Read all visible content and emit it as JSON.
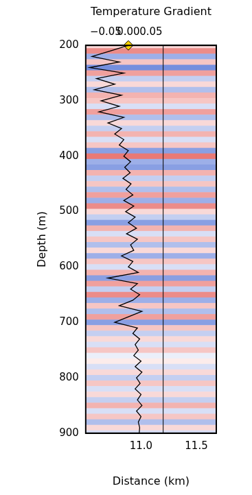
{
  "chart_data": {
    "type": "line",
    "x2_label": "Temperature Gradient",
    "x_label": "Distance (km)",
    "y_label": "Depth (m)",
    "xlim": [
      10.5,
      11.68
    ],
    "xticks": [
      {
        "value": 11.0,
        "label": "11.0"
      },
      {
        "value": 11.5,
        "label": "11.5"
      }
    ],
    "x2lim": [
      -0.094,
      0.194
    ],
    "x2ticks": [
      {
        "value": -0.05,
        "label": "−0.05"
      },
      {
        "value": 0.0,
        "label": "0.00"
      },
      {
        "value": 0.05,
        "label": "0.05"
      }
    ],
    "ylim": [
      200,
      900
    ],
    "yticks": [
      200,
      300,
      400,
      500,
      600,
      700,
      800,
      900
    ],
    "grid": false,
    "image_xlim": [
      10.5,
      11.2
    ],
    "synthetic_xlim": [
      11.2,
      11.68
    ],
    "reflectivity": {
      "depth": [
        200,
        210,
        220,
        230,
        240,
        250,
        260,
        270,
        280,
        290,
        300,
        310,
        320,
        330,
        340,
        350,
        360,
        370,
        380,
        390,
        400,
        410,
        420,
        430,
        440,
        450,
        460,
        470,
        480,
        490,
        500,
        510,
        520,
        530,
        540,
        550,
        560,
        570,
        580,
        590,
        600,
        610,
        620,
        630,
        640,
        650,
        660,
        670,
        680,
        690,
        700,
        710,
        720,
        730,
        740,
        750,
        760,
        770,
        780,
        790,
        800,
        810,
        820,
        830,
        840,
        850,
        860,
        870,
        880,
        890,
        900
      ],
      "amplitude": [
        0.2,
        0.6,
        -0.5,
        0.3,
        -0.7,
        0.5,
        -0.3,
        0.2,
        -0.4,
        0.4,
        0.3,
        -0.2,
        0.5,
        -0.4,
        0.2,
        -0.3,
        0.4,
        -0.2,
        0.3,
        -0.6,
        0.7,
        -0.5,
        -0.6,
        0.4,
        -0.3,
        0.3,
        -0.4,
        0.5,
        -0.5,
        0.6,
        0.2,
        -0.3,
        -0.6,
        0.4,
        -0.2,
        0.3,
        -0.4,
        0.2,
        -0.5,
        0.3,
        -0.2,
        0.4,
        -0.6,
        0.5,
        -0.3,
        0.6,
        -0.5,
        0.3,
        -0.4,
        0.5,
        -0.6,
        0.3,
        -0.3,
        0.2,
        -0.2,
        0.3,
        -0.1,
        0.1,
        -0.2,
        0.2,
        -0.3,
        0.3,
        -0.2,
        0.2,
        -0.3,
        0.4,
        -0.2,
        0.3,
        -0.4,
        0.2,
        -0.2
      ],
      "color_range": [
        -1,
        1
      ],
      "colors": [
        "#3a5fd0",
        "#ffffff",
        "#e0403a"
      ]
    },
    "gradient_curve": {
      "axis": "x2",
      "color": "#000000",
      "depth": [
        200,
        210,
        220,
        230,
        240,
        250,
        260,
        270,
        280,
        290,
        300,
        310,
        320,
        330,
        340,
        350,
        360,
        370,
        380,
        390,
        400,
        410,
        420,
        430,
        440,
        450,
        460,
        470,
        480,
        490,
        500,
        510,
        520,
        530,
        540,
        550,
        560,
        570,
        580,
        590,
        600,
        610,
        620,
        630,
        640,
        650,
        660,
        670,
        680,
        690,
        700,
        710,
        720,
        730,
        740,
        750,
        760,
        770,
        780,
        790,
        800,
        810,
        820,
        830,
        840,
        850,
        860,
        870,
        880,
        890,
        900
      ],
      "values": [
        0.0,
        -0.04,
        -0.08,
        -0.02,
        -0.085,
        -0.01,
        -0.07,
        -0.03,
        -0.075,
        -0.015,
        -0.06,
        -0.02,
        -0.065,
        -0.01,
        -0.045,
        -0.015,
        -0.03,
        -0.01,
        -0.02,
        0.0,
        -0.01,
        0.005,
        -0.008,
        0.004,
        -0.012,
        0.006,
        -0.005,
        0.01,
        -0.01,
        0.012,
        -0.006,
        0.015,
        0.0,
        0.018,
        -0.004,
        0.02,
        0.005,
        0.012,
        -0.015,
        0.01,
        0.0,
        0.022,
        -0.045,
        0.02,
        0.005,
        0.025,
        0.01,
        -0.02,
        0.03,
        0.0,
        -0.03,
        0.02,
        0.01,
        0.025,
        0.015,
        0.022,
        0.012,
        0.028,
        0.015,
        0.03,
        0.018,
        0.026,
        0.015,
        0.028,
        0.02,
        0.03,
        0.018,
        0.028,
        0.022,
        0.025,
        0.024
      ]
    },
    "well_marker": {
      "axis": "x2",
      "value": 0.0,
      "depth": 200,
      "color": "#f5d000",
      "marker": "diamond"
    }
  }
}
